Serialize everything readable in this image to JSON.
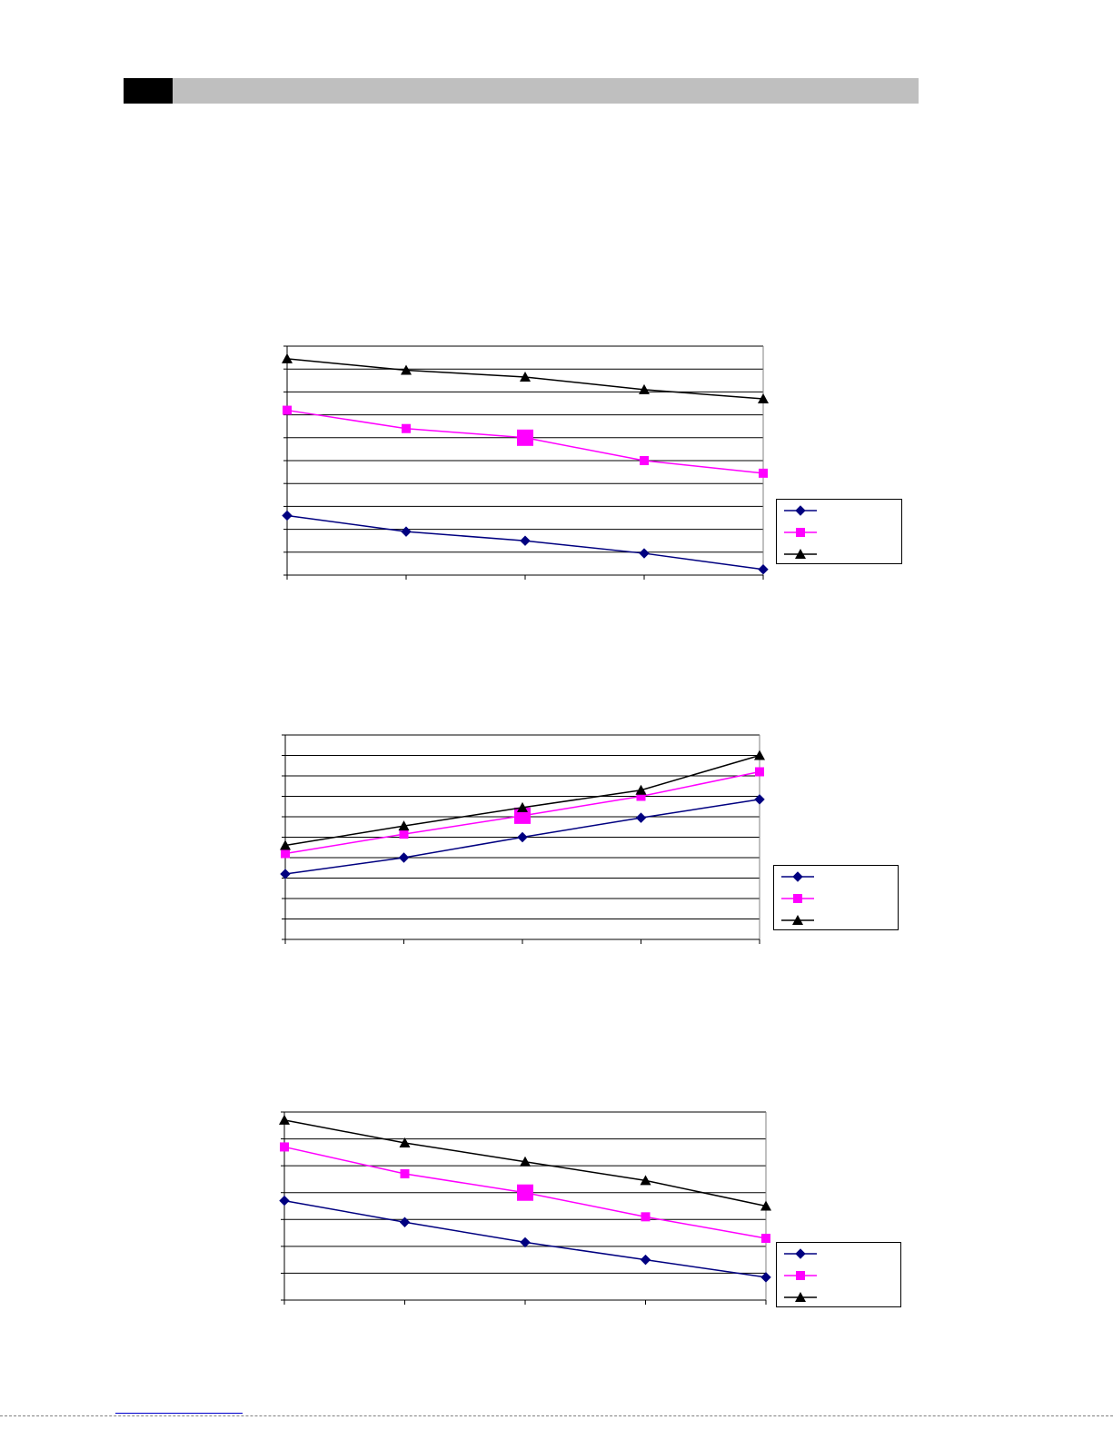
{
  "header": {
    "accent": "#bfbfbf",
    "block_color": "#000000"
  },
  "series_styles": [
    {
      "color": "#000080",
      "marker": "diamond"
    },
    {
      "color": "#ff00ff",
      "marker": "square"
    },
    {
      "color": "#000000",
      "marker": "triangle"
    }
  ],
  "chart_data": [
    {
      "type": "line",
      "x": [
        1,
        2,
        3,
        4,
        5
      ],
      "ylim": [
        0,
        10
      ],
      "grid": true,
      "legend": "right",
      "series": [
        {
          "values": [
            2.6,
            1.9,
            1.5,
            0.95,
            0.25
          ]
        },
        {
          "values": [
            7.2,
            6.4,
            6.0,
            5.0,
            4.45
          ]
        },
        {
          "values": [
            9.45,
            8.95,
            8.65,
            8.1,
            7.7
          ]
        }
      ]
    },
    {
      "type": "line",
      "x": [
        1,
        2,
        3,
        4,
        5
      ],
      "ylim": [
        0,
        10
      ],
      "grid": true,
      "legend": "right",
      "series": [
        {
          "values": [
            3.2,
            4.0,
            5.0,
            5.95,
            6.85
          ]
        },
        {
          "values": [
            4.2,
            5.15,
            6.05,
            7.0,
            8.2
          ]
        },
        {
          "values": [
            4.6,
            5.55,
            6.45,
            7.3,
            9.0
          ]
        }
      ]
    },
    {
      "type": "line",
      "x": [
        1,
        2,
        3,
        4,
        5
      ],
      "ylim": [
        0,
        7
      ],
      "grid": true,
      "legend": "right",
      "series": [
        {
          "values": [
            3.7,
            2.9,
            2.15,
            1.5,
            0.85
          ]
        },
        {
          "values": [
            5.7,
            4.7,
            4.0,
            3.1,
            2.3
          ]
        },
        {
          "values": [
            6.7,
            5.85,
            5.15,
            4.45,
            3.5
          ]
        }
      ]
    }
  ]
}
